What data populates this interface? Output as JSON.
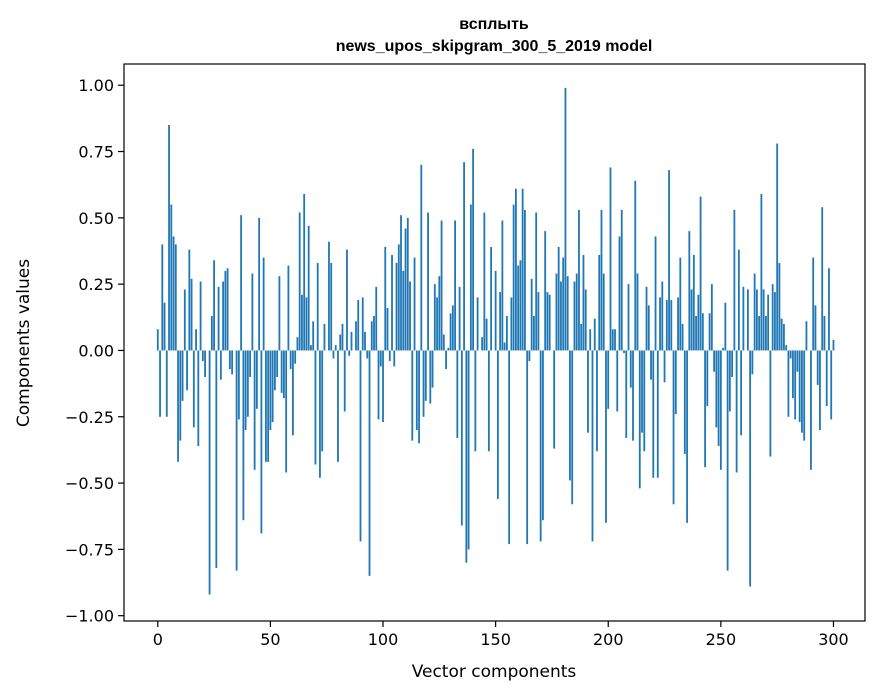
{
  "chart_data": {
    "type": "bar",
    "title": "всплыть",
    "subtitle": "news_upos_skipgram_300_5_2019 model",
    "xlabel": "Vector components",
    "ylabel": "Components values",
    "xlim": [
      -15,
      314
    ],
    "ylim": [
      -1.02,
      1.08
    ],
    "x_ticks": [
      0,
      50,
      100,
      150,
      200,
      250,
      300
    ],
    "x_tick_labels": [
      "0",
      "50",
      "100",
      "150",
      "200",
      "250",
      "300"
    ],
    "y_ticks": [
      1.0,
      0.75,
      0.5,
      0.25,
      0.0,
      -0.25,
      -0.5,
      -0.75,
      -1.0
    ],
    "y_tick_labels": [
      "1.00",
      "0.75",
      "0.50",
      "0.25",
      "0.00",
      "−0.25",
      "−0.50",
      "−0.75",
      "−1.00"
    ],
    "grid": false,
    "bar_color": "#1f77b4",
    "values": [
      0.08,
      -0.25,
      0.4,
      0.18,
      -0.25,
      0.85,
      0.55,
      0.43,
      0.4,
      -0.42,
      -0.34,
      -0.19,
      0.23,
      -0.15,
      0.38,
      0.27,
      -0.29,
      0.08,
      -0.36,
      0.26,
      -0.04,
      -0.1,
      0.0,
      -0.92,
      0.13,
      0.34,
      -0.82,
      0.24,
      -0.11,
      0.26,
      0.3,
      0.31,
      -0.07,
      -0.09,
      0.0,
      -0.83,
      -0.26,
      0.51,
      -0.64,
      -0.3,
      -0.25,
      -0.1,
      0.29,
      -0.45,
      -0.22,
      0.5,
      -0.69,
      0.35,
      -0.42,
      -0.42,
      -0.3,
      -0.27,
      -0.15,
      -0.1,
      0.28,
      -0.16,
      -0.18,
      -0.46,
      0.32,
      -0.07,
      -0.32,
      -0.05,
      0.05,
      0.52,
      0.21,
      0.59,
      0.2,
      0.47,
      0.02,
      0.11,
      -0.43,
      0.33,
      -0.48,
      -0.38,
      0.1,
      0.0,
      0.41,
      0.33,
      -0.03,
      0.02,
      -0.42,
      0.06,
      0.1,
      -0.23,
      0.38,
      -0.02,
      0.07,
      0.0,
      0.11,
      0.19,
      -0.72,
      0.2,
      0.07,
      -0.03,
      -0.85,
      0.11,
      0.13,
      0.24,
      -0.26,
      -0.06,
      -0.27,
      0.39,
      0.16,
      -0.04,
      0.36,
      -0.06,
      0.33,
      0.4,
      0.51,
      0.3,
      0.46,
      0.5,
      0.26,
      -0.34,
      0.35,
      -0.3,
      -0.35,
      0.7,
      -0.25,
      -0.19,
      0.52,
      -0.2,
      -0.14,
      0.25,
      0.2,
      0.28,
      0.49,
      0.06,
      -0.07,
      0.01,
      0.14,
      0.17,
      0.49,
      -0.33,
      0.24,
      -0.66,
      0.71,
      -0.8,
      -0.75,
      0.55,
      0.76,
      -0.38,
      0.2,
      0.0,
      0.05,
      0.52,
      0.12,
      -0.38,
      0.39,
      0.0,
      0.3,
      -0.56,
      0.22,
      0.49,
      0.03,
      0.13,
      -0.73,
      0.2,
      0.55,
      0.61,
      0.32,
      0.34,
      0.61,
      0.53,
      -0.73,
      -0.04,
      0.27,
      0.13,
      0.52,
      0.22,
      -0.72,
      -0.64,
      0.45,
      0.22,
      0.21,
      0.0,
      -0.37,
      0.29,
      0.39,
      0.26,
      0.35,
      0.99,
      0.28,
      -0.49,
      -0.58,
      0.26,
      0.29,
      0.53,
      0.1,
      0.36,
      0.23,
      -0.31,
      0.08,
      -0.72,
      0.12,
      -0.38,
      0.36,
      0.53,
      0.29,
      -0.65,
      -0.22,
      0.69,
      0.08,
      0.08,
      -0.23,
      0.43,
      0.53,
      -0.01,
      -0.33,
      0.25,
      -0.14,
      -0.34,
      0.64,
      0.29,
      -0.52,
      -0.31,
      -0.38,
      0.24,
      0.17,
      -0.11,
      -0.48,
      0.43,
      -0.48,
      0.2,
      0.26,
      -0.12,
      0.19,
      0.68,
      0.19,
      -0.58,
      -0.24,
      0.2,
      0.35,
      0.1,
      -0.39,
      -0.65,
      0.45,
      0.23,
      0.36,
      0.13,
      0.21,
      0.58,
      0.14,
      -0.44,
      -0.21,
      0.14,
      0.25,
      -0.08,
      -0.29,
      -0.36,
      -0.45,
      0.01,
      0.18,
      -0.83,
      -0.23,
      -0.1,
      0.53,
      -0.46,
      0.38,
      -0.32,
      0.24,
      0.0,
      0.23,
      -0.89,
      -0.09,
      0.29,
      0.23,
      0.13,
      0.59,
      0.23,
      0.13,
      0.21,
      -0.4,
      0.25,
      0.22,
      0.78,
      0.33,
      0.12,
      0.1,
      0.02,
      -0.25,
      -0.03,
      -0.18,
      -0.26,
      -0.08,
      -0.27,
      -0.31,
      -0.34,
      0.11,
      0.0,
      -0.45,
      0.35,
      0.17,
      -0.13,
      -0.3,
      0.54,
      0.13,
      -0.21,
      0.31,
      -0.26,
      0.04
    ]
  }
}
